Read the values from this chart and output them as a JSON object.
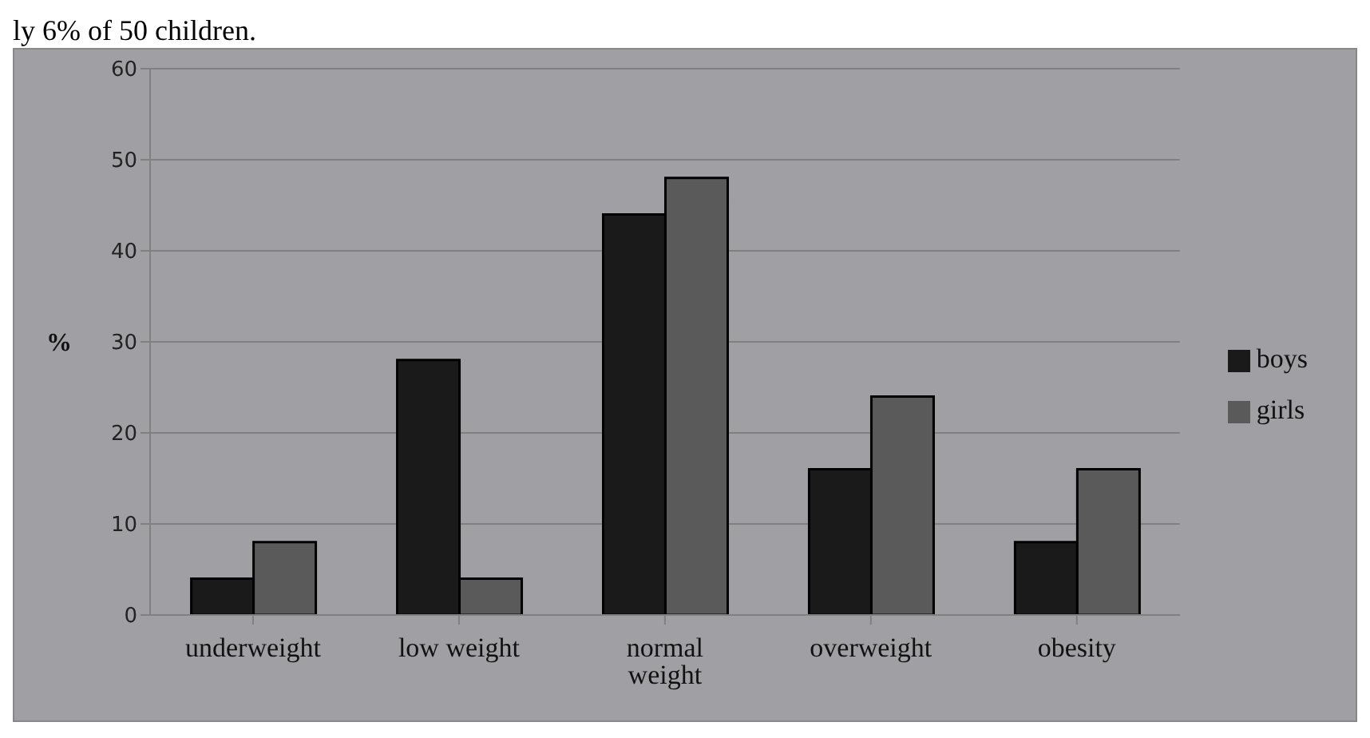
{
  "chart_data": {
    "type": "bar",
    "ylabel": "%",
    "annotations": [
      "ly 6% of 50 children."
    ],
    "categories": [
      "underweight",
      "low weight",
      "normal weight",
      "overweight",
      "obesity"
    ],
    "series": [
      {
        "name": "boys",
        "color": "#1a1a1a",
        "values": [
          4,
          28,
          44,
          16,
          8
        ]
      },
      {
        "name": "girls",
        "color": "#5a5a5a",
        "values": [
          8,
          4,
          48,
          24,
          16
        ]
      }
    ],
    "ylim": [
      0,
      60
    ],
    "yticks": [
      0,
      10,
      20,
      30,
      40,
      50,
      60
    ],
    "grid": "y",
    "legend": "right"
  }
}
